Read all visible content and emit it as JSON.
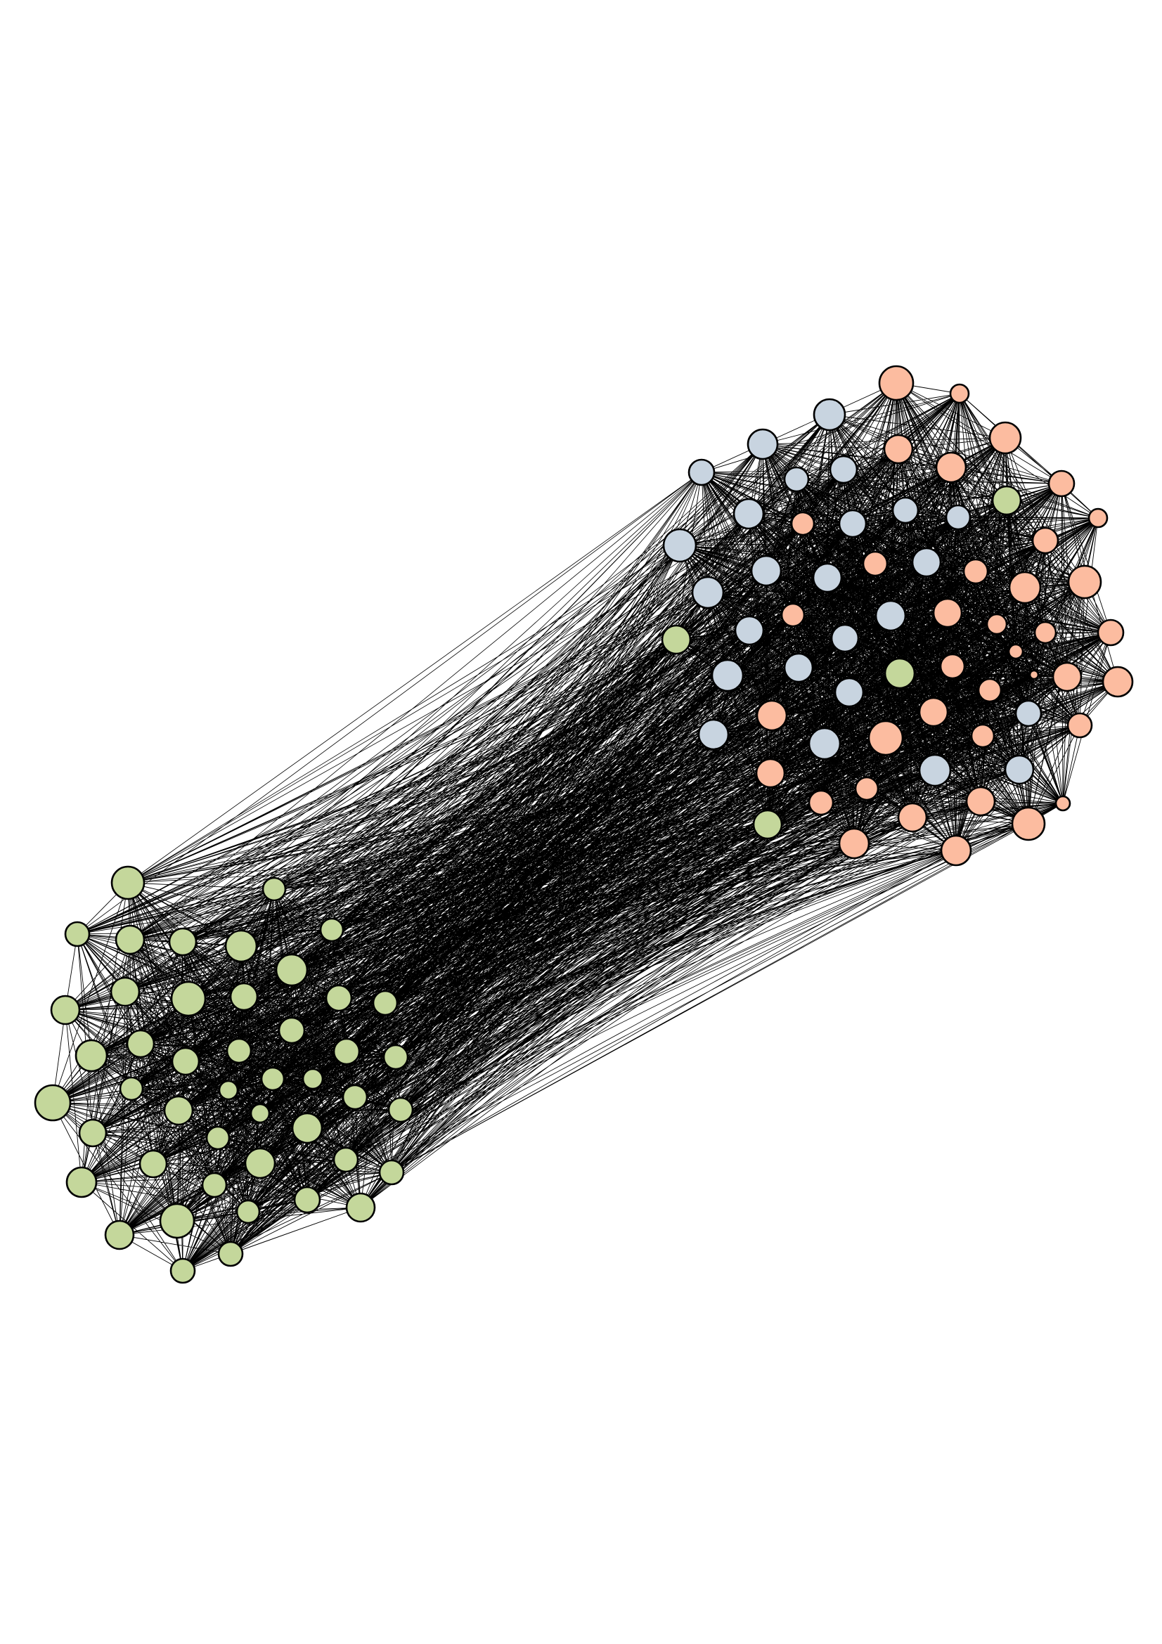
{
  "diagram": {
    "type": "network-graph",
    "background_color": "#ffffff",
    "edge_color": "#000000",
    "node_stroke_color": "#000000",
    "groups": [
      {
        "id": "green",
        "color": "#c4d79b"
      },
      {
        "id": "salmon",
        "color": "#fcbca0"
      },
      {
        "id": "blue-grey",
        "color": "#c8d4e0"
      }
    ],
    "clusters": [
      {
        "id": "lower-left-cluster",
        "members": [
          "green"
        ]
      },
      {
        "id": "upper-right-cluster",
        "members": [
          "salmon",
          "blue-grey",
          "green"
        ]
      }
    ]
  }
}
